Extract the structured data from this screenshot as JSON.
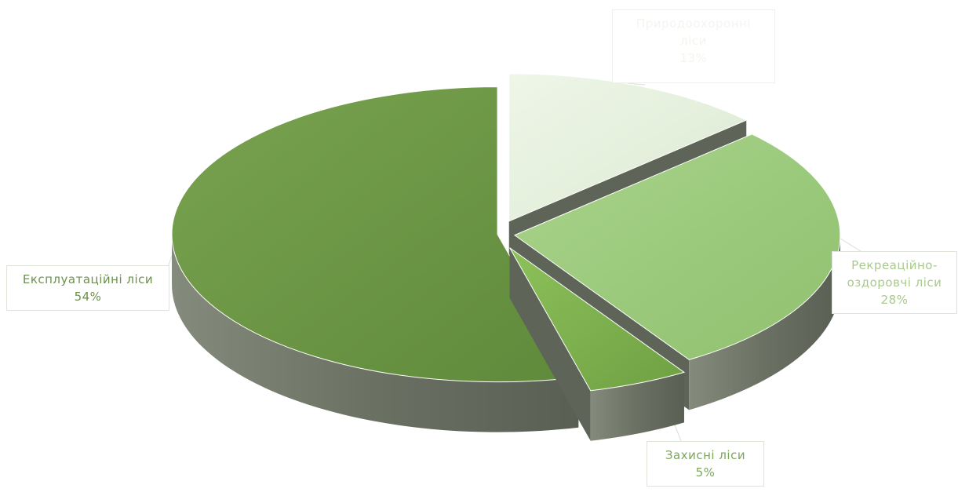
{
  "chart_data": {
    "type": "pie",
    "style": "3d-exploded",
    "legend": "none",
    "slices": [
      {
        "key": "exploitation",
        "label": "Експлуатаційні  ліси",
        "percent_label": "54%",
        "value": 54,
        "color": "#6f9b45"
      },
      {
        "key": "nature",
        "label": "Природоохоронні ліси",
        "percent_label": "13%",
        "value": 13,
        "color": "#e4f0dc"
      },
      {
        "key": "recreation",
        "label": "Рекреаційно-оздоровчі ліси",
        "percent_label": "28%",
        "value": 28,
        "color": "#9ccc7e"
      },
      {
        "key": "protective",
        "label": "Захисні  ліси",
        "percent_label": "5%",
        "value": 5,
        "color": "#7fb24e"
      }
    ]
  },
  "labels": {
    "exploitation": {
      "line1": "Експлуатаційні  ліси",
      "line2": "54%"
    },
    "recreation": {
      "line1": "Рекреаційно-",
      "line2": "оздоровчі ліси",
      "line3": "28%"
    },
    "protective": {
      "line1": "Захисні  ліси",
      "line2": "5%"
    },
    "nature": {
      "line1": "Природоохоронні",
      "line2": "ліси",
      "line3": "13%"
    }
  }
}
